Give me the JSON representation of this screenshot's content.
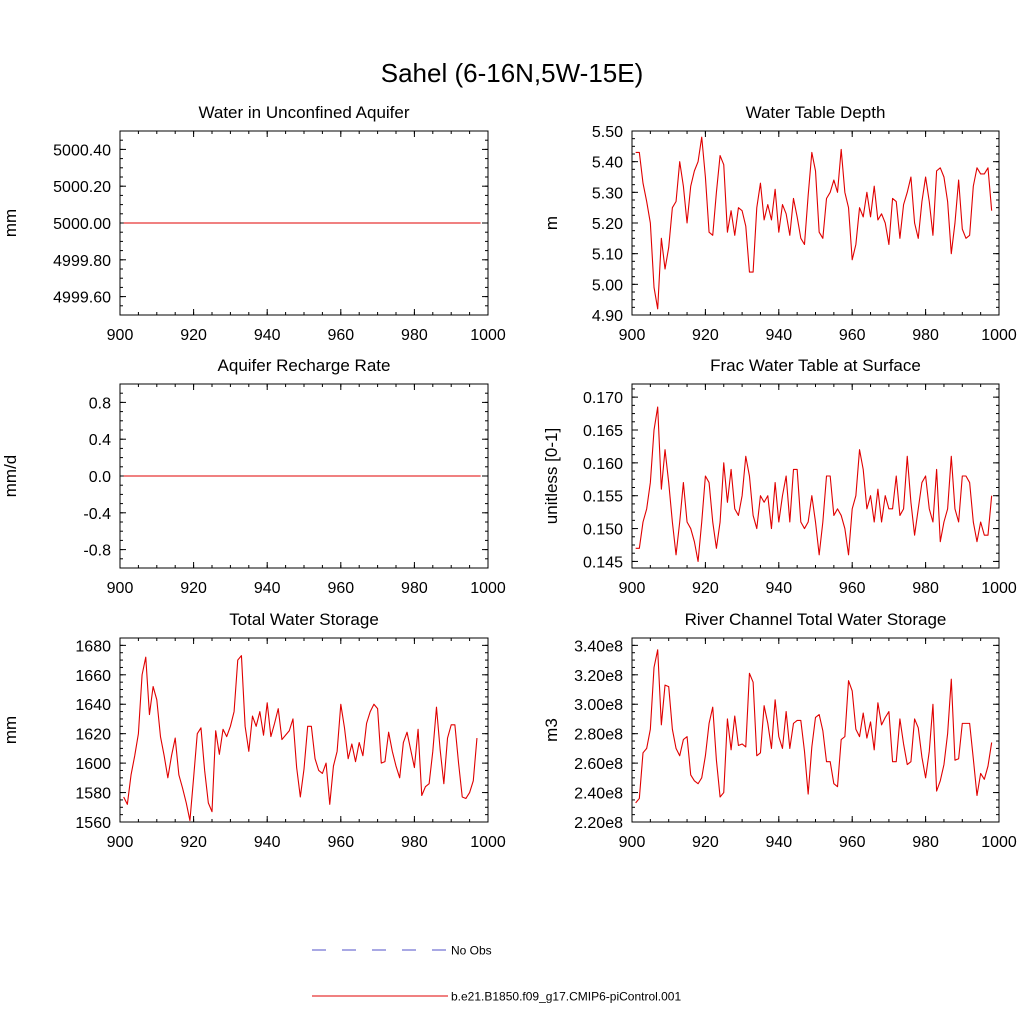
{
  "figure": {
    "title": "Sahel (6-16N,5W-15E)"
  },
  "legend": {
    "items": [
      {
        "label": "No Obs",
        "color": "#5050c8",
        "dash": true
      },
      {
        "label": "b.e21.B1850.f09_g17.CMIP6-piControl.001",
        "color": "#e00000",
        "dash": false
      }
    ]
  },
  "colors": {
    "model": "#e00000",
    "obs": "#5050c8",
    "axis": "#000000"
  },
  "chart_data": [
    {
      "id": "p1",
      "type": "line",
      "title": "Water in Unconfined Aquifer",
      "ylabel": "mm",
      "xlim": [
        900,
        1000
      ],
      "ylim": [
        4999.5,
        5000.5
      ],
      "xticks": [
        900,
        920,
        940,
        960,
        980,
        1000
      ],
      "xticklabels": [
        "900",
        "920",
        "940",
        "960",
        "980",
        "1000"
      ],
      "yticks": [
        4999.6,
        4999.8,
        5000.0,
        5000.2,
        5000.4
      ],
      "yticklabels": [
        "4999.60",
        "4999.80",
        "5000.00",
        "5000.20",
        "5000.40"
      ],
      "series": [
        {
          "x0": 901,
          "dx": 1,
          "values": [
            5000,
            5000,
            5000,
            5000,
            5000,
            5000,
            5000,
            5000,
            5000,
            5000,
            5000,
            5000,
            5000,
            5000,
            5000,
            5000,
            5000,
            5000,
            5000,
            5000,
            5000,
            5000,
            5000,
            5000,
            5000,
            5000,
            5000,
            5000,
            5000,
            5000,
            5000,
            5000,
            5000,
            5000,
            5000,
            5000,
            5000,
            5000,
            5000,
            5000,
            5000,
            5000,
            5000,
            5000,
            5000,
            5000,
            5000,
            5000,
            5000,
            5000,
            5000,
            5000,
            5000,
            5000,
            5000,
            5000,
            5000,
            5000,
            5000,
            5000,
            5000,
            5000,
            5000,
            5000,
            5000,
            5000,
            5000,
            5000,
            5000,
            5000,
            5000,
            5000,
            5000,
            5000,
            5000,
            5000,
            5000,
            5000,
            5000,
            5000,
            5000,
            5000,
            5000,
            5000,
            5000,
            5000,
            5000,
            5000,
            5000,
            5000,
            5000,
            5000,
            5000,
            5000,
            5000,
            5000,
            5000,
            5000
          ]
        }
      ]
    },
    {
      "id": "p2",
      "type": "line",
      "title": "Water Table Depth",
      "ylabel": "m",
      "xlim": [
        900,
        1000
      ],
      "ylim": [
        4.9,
        5.5
      ],
      "xticks": [
        900,
        920,
        940,
        960,
        980,
        1000
      ],
      "xticklabels": [
        "900",
        "920",
        "940",
        "960",
        "980",
        "1000"
      ],
      "yticks": [
        4.9,
        5.0,
        5.1,
        5.2,
        5.3,
        5.4,
        5.5
      ],
      "yticklabels": [
        "4.90",
        "5.00",
        "5.10",
        "5.20",
        "5.30",
        "5.40",
        "5.50"
      ],
      "series": [
        {
          "x0": 901,
          "dx": 1,
          "values": [
            5.43,
            5.43,
            5.33,
            5.27,
            5.2,
            4.99,
            4.92,
            5.15,
            5.05,
            5.12,
            5.25,
            5.27,
            5.4,
            5.32,
            5.2,
            5.32,
            5.37,
            5.4,
            5.48,
            5.35,
            5.17,
            5.16,
            5.3,
            5.42,
            5.39,
            5.17,
            5.24,
            5.16,
            5.25,
            5.24,
            5.19,
            5.04,
            5.04,
            5.25,
            5.33,
            5.21,
            5.26,
            5.21,
            5.31,
            5.17,
            5.26,
            5.23,
            5.16,
            5.28,
            5.22,
            5.15,
            5.13,
            5.29,
            5.43,
            5.37,
            5.17,
            5.15,
            5.28,
            5.3,
            5.34,
            5.3,
            5.44,
            5.3,
            5.25,
            5.08,
            5.13,
            5.25,
            5.22,
            5.3,
            5.22,
            5.32,
            5.21,
            5.23,
            5.2,
            5.13,
            5.28,
            5.27,
            5.15,
            5.26,
            5.3,
            5.35,
            5.2,
            5.15,
            5.27,
            5.35,
            5.27,
            5.16,
            5.37,
            5.38,
            5.35,
            5.27,
            5.1,
            5.2,
            5.34,
            5.18,
            5.15,
            5.16,
            5.32,
            5.38,
            5.36,
            5.36,
            5.38,
            5.24
          ]
        }
      ]
    },
    {
      "id": "p3",
      "type": "line",
      "title": "Aquifer Recharge Rate",
      "ylabel": "mm/d",
      "xlim": [
        900,
        1000
      ],
      "ylim": [
        -1.0,
        1.0
      ],
      "xticks": [
        900,
        920,
        940,
        960,
        980,
        1000
      ],
      "xticklabels": [
        "900",
        "920",
        "940",
        "960",
        "980",
        "1000"
      ],
      "yticks": [
        -0.8,
        -0.4,
        0.0,
        0.4,
        0.8
      ],
      "yticklabels": [
        "-0.8",
        "-0.4",
        "0.0",
        "0.4",
        "0.8"
      ],
      "series": [
        {
          "x0": 901,
          "dx": 1,
          "values": [
            0,
            0,
            0,
            0,
            0,
            0,
            0,
            0,
            0,
            0,
            0,
            0,
            0,
            0,
            0,
            0,
            0,
            0,
            0,
            0,
            0,
            0,
            0,
            0,
            0,
            0,
            0,
            0,
            0,
            0,
            0,
            0,
            0,
            0,
            0,
            0,
            0,
            0,
            0,
            0,
            0,
            0,
            0,
            0,
            0,
            0,
            0,
            0,
            0,
            0,
            0,
            0,
            0,
            0,
            0,
            0,
            0,
            0,
            0,
            0,
            0,
            0,
            0,
            0,
            0,
            0,
            0,
            0,
            0,
            0,
            0,
            0,
            0,
            0,
            0,
            0,
            0,
            0,
            0,
            0,
            0,
            0,
            0,
            0,
            0,
            0,
            0,
            0,
            0,
            0,
            0,
            0,
            0,
            0,
            0,
            0,
            0,
            0
          ]
        }
      ]
    },
    {
      "id": "p4",
      "type": "line",
      "title": "Frac Water Table at Surface",
      "ylabel": "unitless [0-1]",
      "xlim": [
        900,
        1000
      ],
      "ylim": [
        0.144,
        0.172
      ],
      "xticks": [
        900,
        920,
        940,
        960,
        980,
        1000
      ],
      "xticklabels": [
        "900",
        "920",
        "940",
        "960",
        "980",
        "1000"
      ],
      "yticks": [
        0.145,
        0.15,
        0.155,
        0.16,
        0.165,
        0.17
      ],
      "yticklabels": [
        "0.145",
        "0.150",
        "0.155",
        "0.160",
        "0.165",
        "0.170"
      ],
      "series": [
        {
          "x0": 901,
          "dx": 1,
          "values": [
            0.147,
            0.147,
            0.151,
            0.153,
            0.157,
            0.165,
            0.1685,
            0.156,
            0.162,
            0.157,
            0.151,
            0.146,
            0.151,
            0.157,
            0.151,
            0.15,
            0.148,
            0.145,
            0.151,
            0.158,
            0.157,
            0.151,
            0.147,
            0.151,
            0.16,
            0.154,
            0.159,
            0.153,
            0.152,
            0.155,
            0.161,
            0.158,
            0.152,
            0.15,
            0.155,
            0.154,
            0.155,
            0.15,
            0.157,
            0.151,
            0.155,
            0.158,
            0.151,
            0.159,
            0.159,
            0.151,
            0.15,
            0.151,
            0.155,
            0.151,
            0.146,
            0.151,
            0.158,
            0.158,
            0.152,
            0.153,
            0.152,
            0.15,
            0.146,
            0.153,
            0.155,
            0.162,
            0.159,
            0.153,
            0.155,
            0.151,
            0.156,
            0.151,
            0.155,
            0.153,
            0.153,
            0.158,
            0.152,
            0.153,
            0.161,
            0.154,
            0.149,
            0.153,
            0.157,
            0.158,
            0.153,
            0.151,
            0.159,
            0.148,
            0.151,
            0.153,
            0.161,
            0.153,
            0.151,
            0.158,
            0.158,
            0.157,
            0.151,
            0.148,
            0.151,
            0.149,
            0.149,
            0.155
          ]
        }
      ]
    },
    {
      "id": "p5",
      "type": "line",
      "title": "Total Water Storage",
      "ylabel": "mm",
      "xlim": [
        900,
        1000
      ],
      "ylim": [
        1560,
        1685
      ],
      "xticks": [
        900,
        920,
        940,
        960,
        980,
        1000
      ],
      "xticklabels": [
        "900",
        "920",
        "940",
        "960",
        "980",
        "1000"
      ],
      "yticks": [
        1560,
        1580,
        1600,
        1620,
        1640,
        1660,
        1680
      ],
      "yticklabels": [
        "1560",
        "1580",
        "1600",
        "1620",
        "1640",
        "1660",
        "1680"
      ],
      "series": [
        {
          "x0": 901,
          "dx": 1,
          "values": [
            1577,
            1572,
            1592,
            1605,
            1620,
            1660,
            1672,
            1633,
            1652,
            1643,
            1618,
            1605,
            1590,
            1605,
            1617,
            1592,
            1583,
            1573,
            1561,
            1590,
            1620,
            1624,
            1595,
            1573,
            1567,
            1622,
            1606,
            1623,
            1618,
            1625,
            1635,
            1670,
            1673,
            1625,
            1608,
            1632,
            1625,
            1635,
            1619,
            1641,
            1618,
            1627,
            1637,
            1616,
            1619,
            1622,
            1630,
            1597,
            1577,
            1596,
            1625,
            1625,
            1603,
            1595,
            1593,
            1600,
            1572,
            1598,
            1608,
            1640,
            1624,
            1603,
            1613,
            1601,
            1614,
            1605,
            1627,
            1635,
            1640,
            1637,
            1600,
            1601,
            1621,
            1608,
            1598,
            1590,
            1614,
            1621,
            1609,
            1597,
            1623,
            1578,
            1584,
            1586,
            1608,
            1638,
            1609,
            1586,
            1617,
            1626,
            1626,
            1600,
            1577,
            1576,
            1580,
            1588,
            1617
          ]
        }
      ]
    },
    {
      "id": "p6",
      "type": "line",
      "title": "River Channel Total Water Storage",
      "ylabel": "m3",
      "xlim": [
        900,
        1000
      ],
      "ylim": [
        220000000.0,
        345000000.0
      ],
      "xticks": [
        900,
        920,
        940,
        960,
        980,
        1000
      ],
      "xticklabels": [
        "900",
        "920",
        "940",
        "960",
        "980",
        "1000"
      ],
      "yticks": [
        220000000.0,
        240000000.0,
        260000000.0,
        280000000.0,
        300000000.0,
        320000000.0,
        340000000.0
      ],
      "yticklabels": [
        "2.20e8",
        "2.40e8",
        "2.60e8",
        "2.80e8",
        "3.00e8",
        "3.20e8",
        "3.40e8"
      ],
      "series": [
        {
          "x0": 901,
          "dx": 1,
          "values": [
            233000000.0,
            236000000.0,
            267000000.0,
            270000000.0,
            283000000.0,
            325000000.0,
            337000000.0,
            286000000.0,
            313000000.0,
            312000000.0,
            283000000.0,
            270000000.0,
            265000000.0,
            276000000.0,
            278000000.0,
            252000000.0,
            248000000.0,
            246000000.0,
            250000000.0,
            265000000.0,
            287000000.0,
            298000000.0,
            262000000.0,
            237000000.0,
            240000000.0,
            290000000.0,
            269000000.0,
            292000000.0,
            272000000.0,
            273000000.0,
            271000000.0,
            321000000.0,
            315000000.0,
            265000000.0,
            267000000.0,
            299000000.0,
            287000000.0,
            270000000.0,
            303000000.0,
            278000000.0,
            270000000.0,
            295000000.0,
            270000000.0,
            287000000.0,
            289000000.0,
            289000000.0,
            268000000.0,
            239000000.0,
            271000000.0,
            291000000.0,
            293000000.0,
            282000000.0,
            261000000.0,
            261000000.0,
            246000000.0,
            244000000.0,
            276000000.0,
            278000000.0,
            316000000.0,
            309000000.0,
            283000000.0,
            278000000.0,
            294000000.0,
            277000000.0,
            288000000.0,
            269000000.0,
            301000000.0,
            286000000.0,
            291000000.0,
            295000000.0,
            261000000.0,
            261000000.0,
            290000000.0,
            273000000.0,
            259000000.0,
            261000000.0,
            290000000.0,
            284000000.0,
            264000000.0,
            250000000.0,
            268000000.0,
            300000000.0,
            241000000.0,
            248000000.0,
            259000000.0,
            280000000.0,
            317000000.0,
            262000000.0,
            263000000.0,
            287000000.0,
            287000000.0,
            287000000.0,
            263000000.0,
            238000000.0,
            253000000.0,
            249000000.0,
            258000000.0,
            274000000.0
          ]
        }
      ]
    }
  ]
}
